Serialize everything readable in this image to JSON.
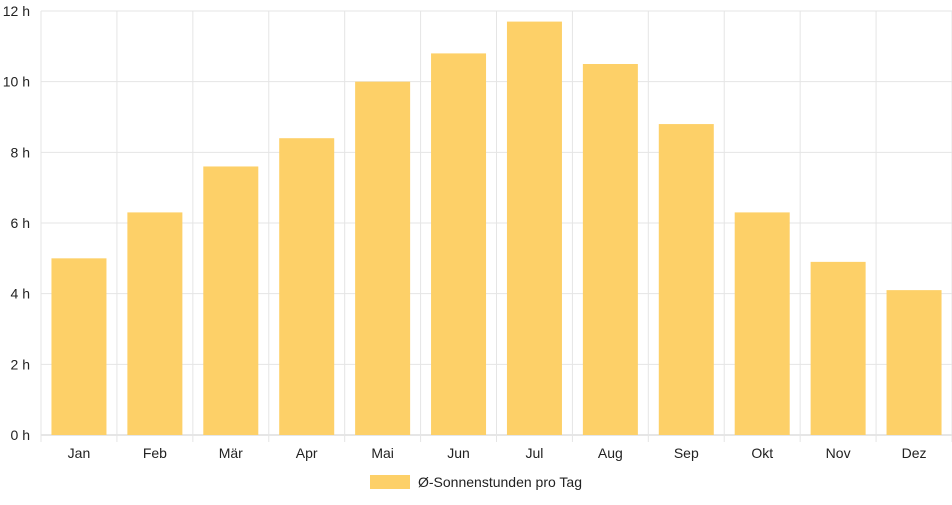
{
  "chart_data": {
    "type": "bar",
    "categories": [
      "Jan",
      "Feb",
      "Mär",
      "Apr",
      "Mai",
      "Jun",
      "Jul",
      "Aug",
      "Sep",
      "Okt",
      "Nov",
      "Dez"
    ],
    "series": [
      {
        "name": "Ø-Sonnenstunden pro Tag",
        "values": [
          5.0,
          6.3,
          7.6,
          8.4,
          10.0,
          10.8,
          11.7,
          10.5,
          8.8,
          6.3,
          4.9,
          4.1
        ],
        "color": "#fdd068"
      }
    ],
    "y_ticks": [
      "0 h",
      "2 h",
      "4 h",
      "6 h",
      "8 h",
      "10 h",
      "12 h"
    ],
    "ylim": [
      0,
      12
    ],
    "grid": true,
    "legend_position": "bottom",
    "grid_color": "#e5e5e5",
    "axis_color": "#cccccc"
  }
}
